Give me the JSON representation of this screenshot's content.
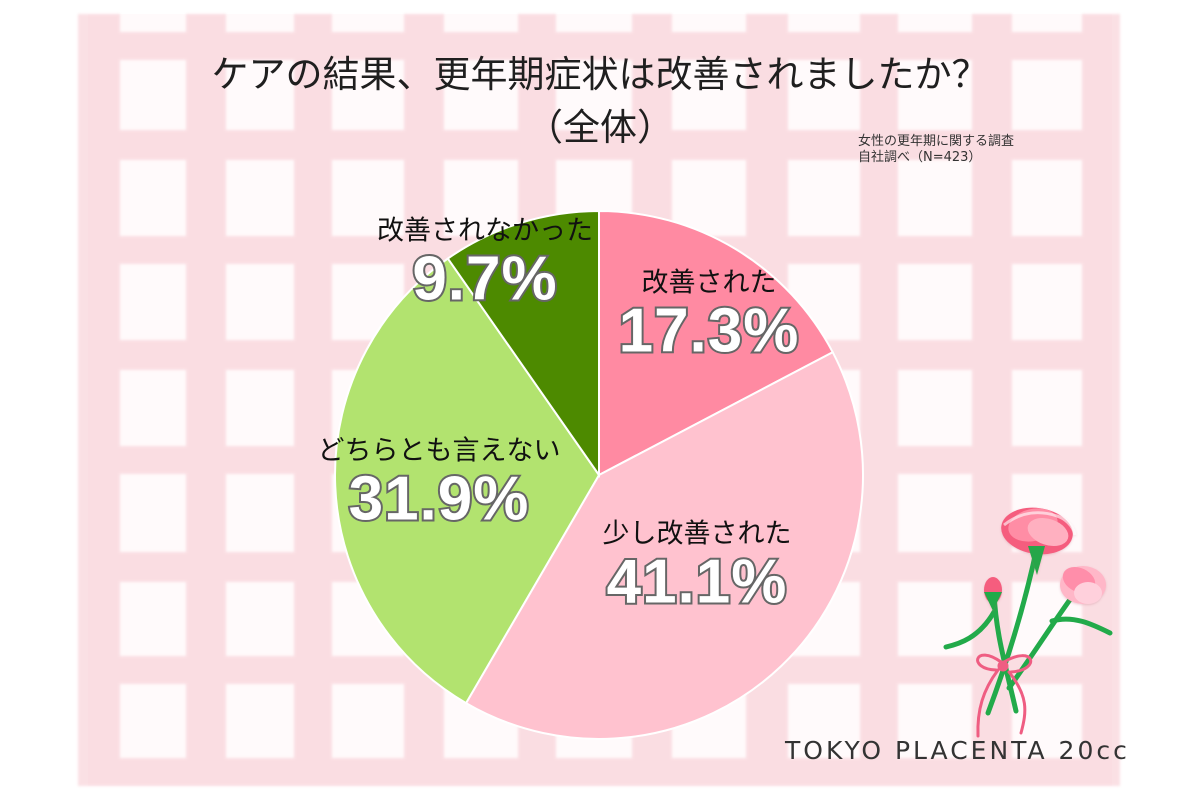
{
  "title": {
    "line1": "ケアの結果、更年期症状は改善されましたか？",
    "line2": "（全体）"
  },
  "source": {
    "line1": "女性の更年期に関する調査",
    "line2": "自社調べ（N=423）"
  },
  "brand": "TOKYO PLACENTA 20cc",
  "chart_data": {
    "type": "pie",
    "title": "ケアの結果、更年期症状は改善されましたか？（全体）",
    "start_angle": "12 o'clock",
    "direction": "clockwise",
    "slices": [
      {
        "label": "改善された",
        "value": 17.3,
        "display": "17.3%",
        "color": "#ff8aa2"
      },
      {
        "label": "少し改善された",
        "value": 41.1,
        "display": "41.1%",
        "color": "#ffc2cf"
      },
      {
        "label": "どちらとも言えない",
        "value": 31.9,
        "display": "31.9%",
        "color": "#b2e36f"
      },
      {
        "label": "改善されなかった",
        "value": 9.7,
        "display": "9.7%",
        "color": "#4d8a00"
      }
    ]
  },
  "colors": {
    "background": "#fffafb",
    "check_pattern": "#f7c7cf",
    "title_text": "#1f1f1f",
    "percent_stroke": "#666666"
  },
  "decoration": {
    "background_pattern": "pink check pattern",
    "illustration": "pink carnation bouquet with ribbon"
  }
}
